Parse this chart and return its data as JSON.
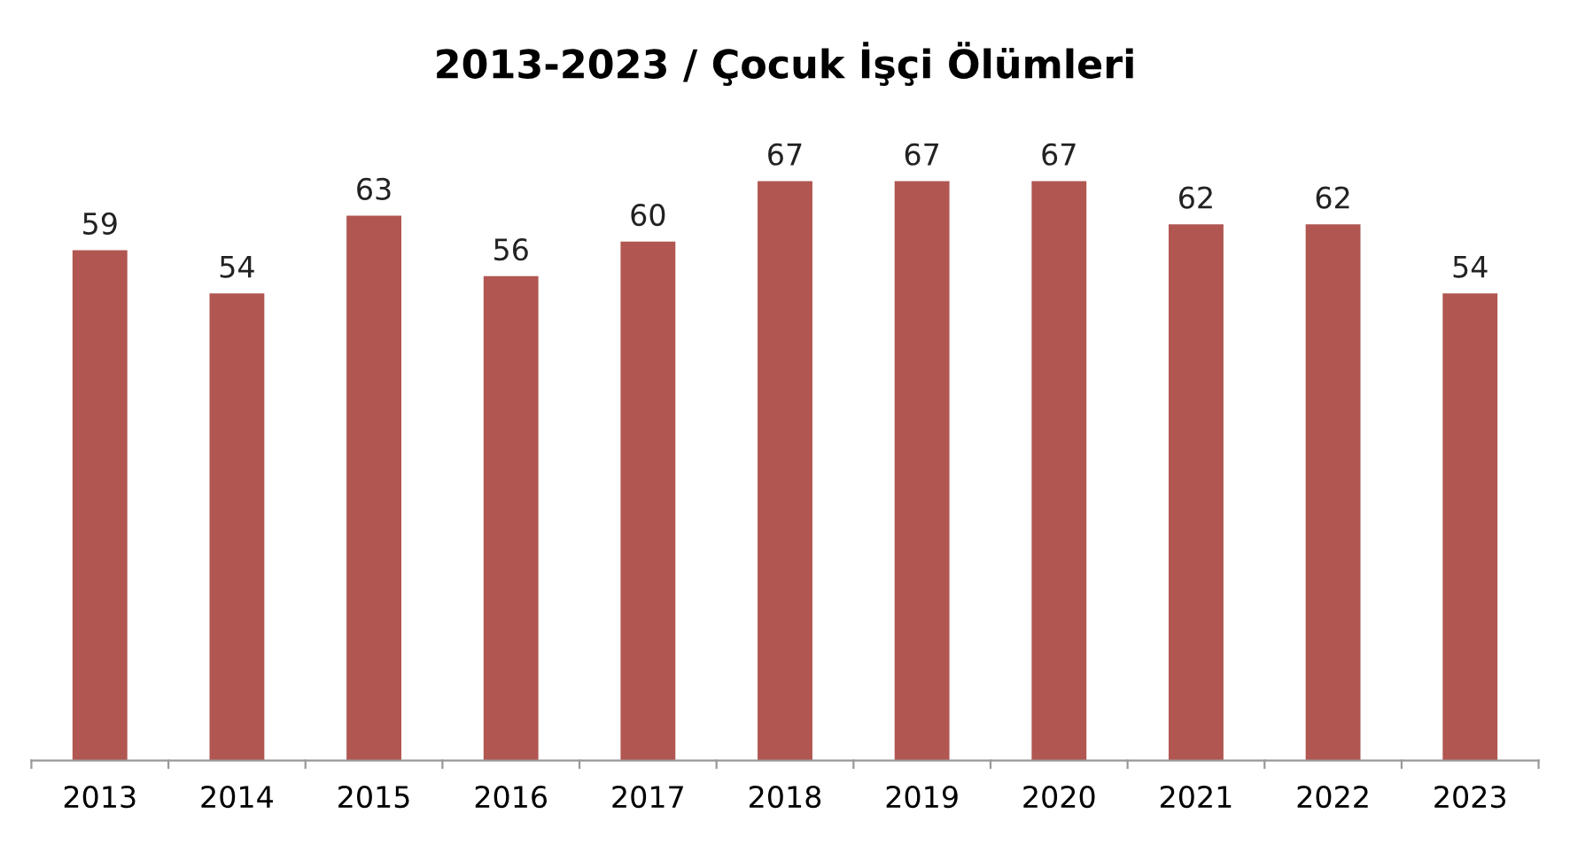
{
  "chart_data": {
    "type": "bar",
    "title": "2013-2023 / Çocuk İşçi Ölümleri",
    "categories": [
      "2013",
      "2014",
      "2015",
      "2016",
      "2017",
      "2018",
      "2019",
      "2020",
      "2021",
      "2022",
      "2023"
    ],
    "values": [
      59,
      54,
      63,
      56,
      60,
      67,
      67,
      67,
      62,
      62,
      54
    ],
    "color": "#b15651",
    "data_labels": true,
    "grid": false,
    "legend": false
  }
}
